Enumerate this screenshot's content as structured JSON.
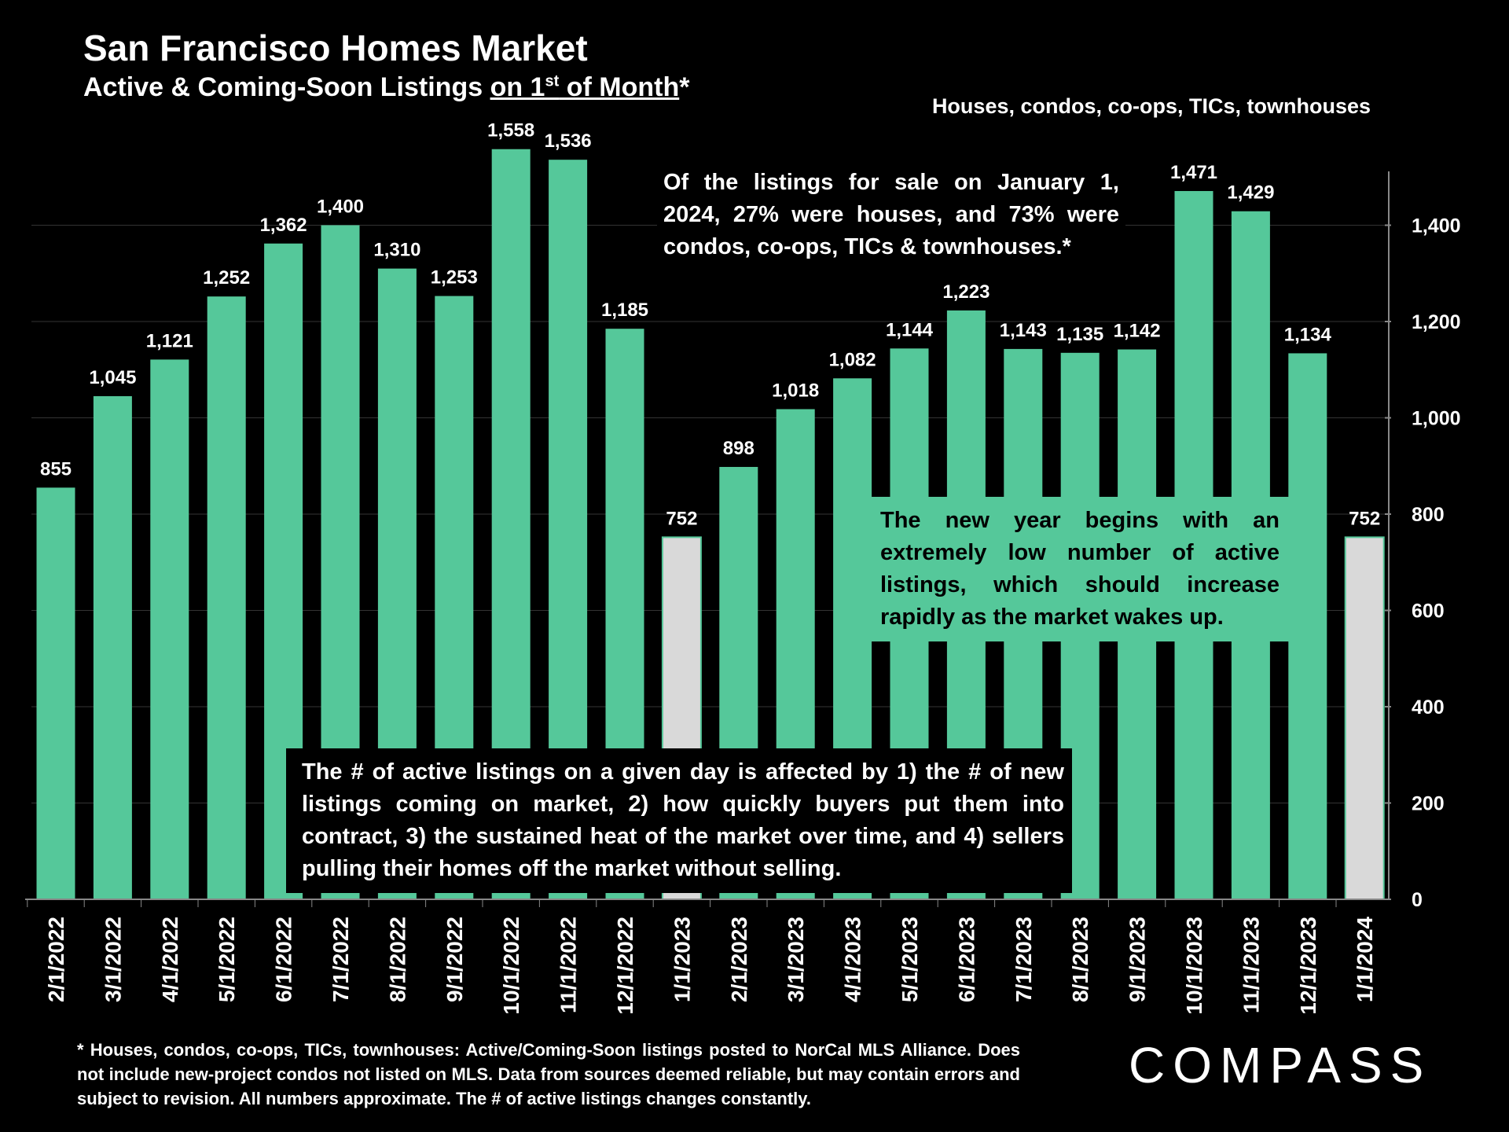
{
  "header": {
    "title": "San Francisco Homes Market",
    "subtitle_main": "Active & Coming-Soon Listings ",
    "subtitle_underlined_pre": "on 1",
    "subtitle_sup": "st",
    "subtitle_underlined_post": " of Month",
    "subtitle_star": "*",
    "segment_note": "Houses, condos, co-ops, TICs, townhouses"
  },
  "annotations": {
    "breakdown": "Of the listings for sale on January 1, 2024, 27% were houses, and 73% were condos, co-ops, TICs & townhouses.*",
    "new_year": "The new year begins with an extremely low number of active listings, which should increase rapidly as the market wakes up.",
    "explanation": "The # of active listings on a given day is affected by 1) the # of new listings coming on market, 2) how quickly buyers put them into contract, 3) the sustained heat of the market over time, and 4) sellers pulling their homes off the market without selling."
  },
  "footnote": "* Houses, condos, co-ops, TICs, townhouses: Active/Coming-Soon listings posted to NorCal MLS Alliance. Does not include new-project condos not listed on MLS. Data from sources deemed reliable, but may contain errors and subject to revision. All numbers approximate. The # of active listings changes constantly.",
  "logo_text": "COMPASS",
  "colors": {
    "bar": "#55c89a",
    "bar_highlight": "#d9d9d9",
    "background": "#000000",
    "grid": "#333333"
  },
  "chart_data": {
    "type": "bar",
    "categories": [
      "2/1/2022",
      "3/1/2022",
      "4/1/2022",
      "5/1/2022",
      "6/1/2022",
      "7/1/2022",
      "8/1/2022",
      "9/1/2022",
      "10/1/2022",
      "11/1/2022",
      "12/1/2022",
      "1/1/2023",
      "2/1/2023",
      "3/1/2023",
      "4/1/2023",
      "5/1/2023",
      "6/1/2023",
      "7/1/2023",
      "8/1/2023",
      "9/1/2023",
      "10/1/2023",
      "11/1/2023",
      "12/1/2023",
      "1/1/2024"
    ],
    "values": [
      855,
      1045,
      1121,
      1252,
      1362,
      1400,
      1310,
      1253,
      1558,
      1536,
      1185,
      752,
      898,
      1018,
      1082,
      1144,
      1223,
      1143,
      1135,
      1142,
      1471,
      1429,
      1134,
      752
    ],
    "data_labels": [
      "855",
      "1,045",
      "1,121",
      "1,252",
      "1,362",
      "1,400",
      "1,310",
      "1,253",
      "1,558",
      "1,536",
      "1,185",
      "752",
      "898",
      "1,018",
      "1,082",
      "1,144",
      "1,223",
      "1,143",
      "1,135",
      "1,142",
      "1,471",
      "1,429",
      "1,134",
      "752"
    ],
    "highlighted": [
      "1/1/2023",
      "1/1/2024"
    ],
    "y_ticks": [
      "0",
      "200",
      "400",
      "600",
      "800",
      "1,000",
      "1,200",
      "1,400"
    ],
    "ylim": [
      0,
      1600
    ],
    "y_axis_side": "right",
    "grid": true,
    "legend": "none"
  }
}
